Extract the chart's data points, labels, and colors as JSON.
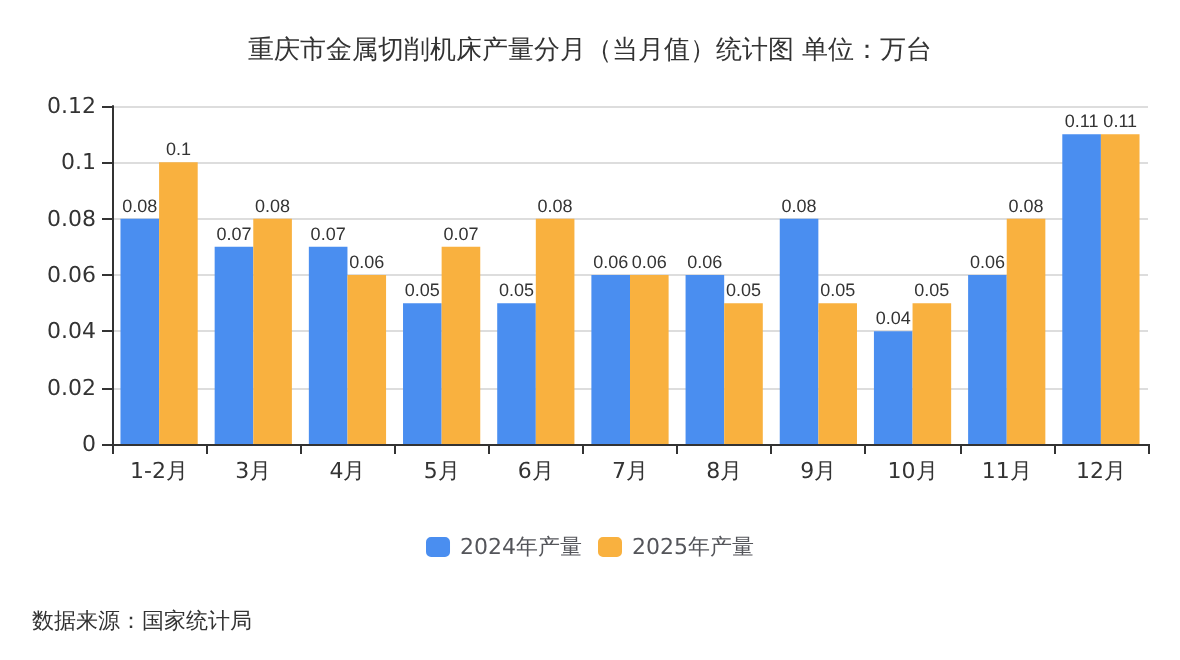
{
  "chart_data": {
    "type": "bar",
    "title": "重庆市金属切削机床产量分月（当月值）统计图 单位：万台",
    "categories": [
      "1-2月",
      "3月",
      "4月",
      "5月",
      "6月",
      "7月",
      "8月",
      "9月",
      "10月",
      "11月",
      "12月"
    ],
    "series": [
      {
        "name": "2024年产量",
        "color": "#4a8ef0",
        "values": [
          0.08,
          0.07,
          0.07,
          0.05,
          0.05,
          0.06,
          0.06,
          0.08,
          0.04,
          0.06,
          0.11
        ]
      },
      {
        "name": "2025年产量",
        "color": "#f9b13f",
        "values": [
          0.1,
          0.08,
          0.06,
          0.07,
          0.08,
          0.06,
          0.05,
          0.05,
          0.05,
          0.08,
          0.11
        ]
      }
    ],
    "ylim": [
      0,
      0.12
    ],
    "yticks": [
      0,
      0.02,
      0.04,
      0.06,
      0.08,
      0.1,
      0.12
    ],
    "grid": "y",
    "legend": "bottom",
    "data_labels": true,
    "annotations": [
      "数据来源：国家统计局"
    ]
  }
}
